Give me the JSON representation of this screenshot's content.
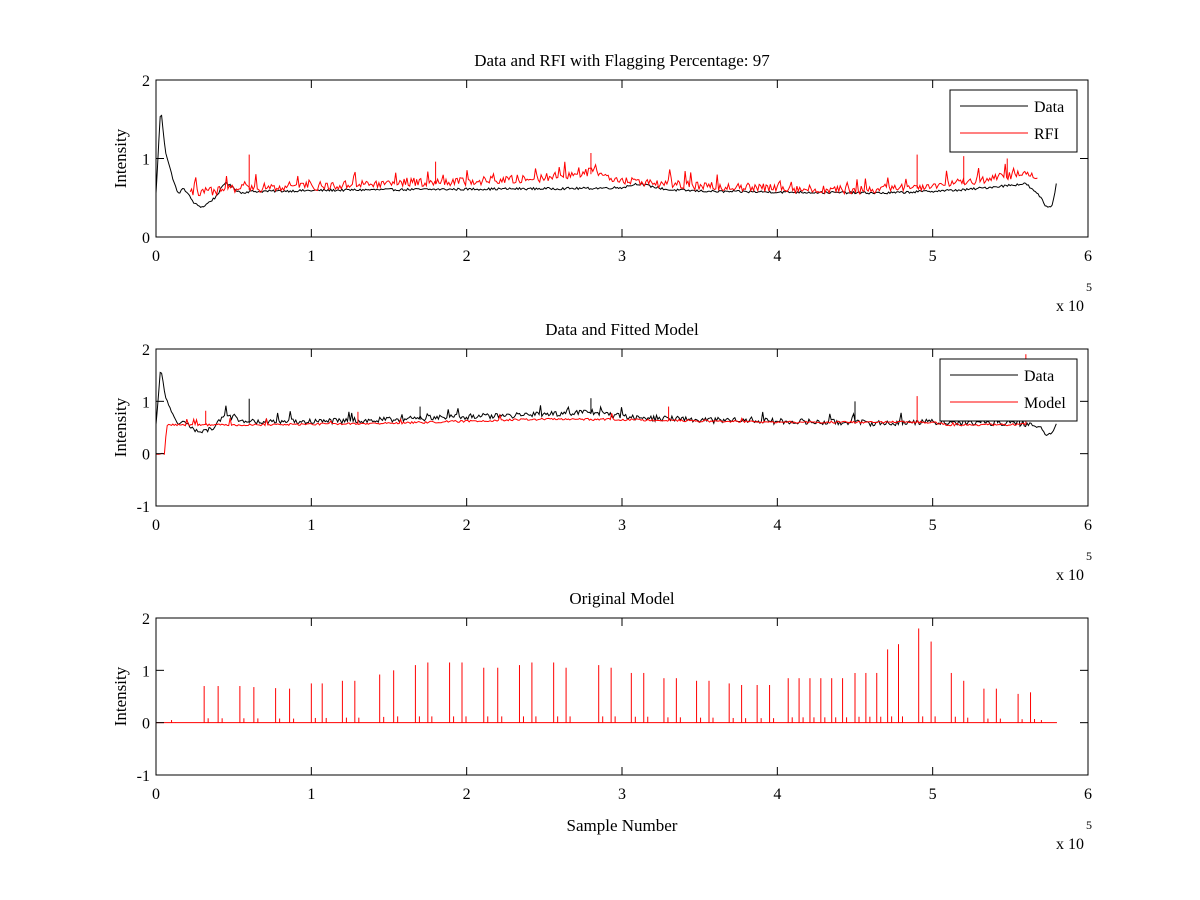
{
  "chart_data": [
    {
      "type": "line",
      "title": "Data and RFI with Flagging Percentage: 97",
      "xlabel": "",
      "ylabel": "Intensity",
      "xlim": [
        0,
        600000
      ],
      "ylim": [
        0,
        2
      ],
      "xticks": [
        "0",
        "1",
        "2",
        "3",
        "4",
        "5",
        "6"
      ],
      "yticks": [
        "0",
        "1",
        "2"
      ],
      "x_multiplier": {
        "base": "x 10",
        "exponent": "5"
      },
      "legend": {
        "placement": "top-right",
        "entries": [
          "Data",
          "RFI"
        ]
      },
      "grid": false,
      "series": [
        {
          "name": "Data",
          "color": "#000000",
          "points": [
            [
              0,
              0.55
            ],
            [
              3000,
              1.65
            ],
            [
              6000,
              1.1
            ],
            [
              10000,
              0.8
            ],
            [
              14000,
              0.55
            ],
            [
              18000,
              0.62
            ],
            [
              25000,
              0.42
            ],
            [
              30000,
              0.38
            ],
            [
              38000,
              0.5
            ],
            [
              45000,
              0.7
            ],
            [
              50000,
              0.62
            ],
            [
              55000,
              0.56
            ],
            [
              60000,
              0.58
            ],
            [
              130000,
              0.6
            ],
            [
              280000,
              0.62
            ],
            [
              300000,
              0.63
            ],
            [
              310000,
              0.68
            ],
            [
              330000,
              0.6
            ],
            [
              360000,
              0.58
            ],
            [
              470000,
              0.56
            ],
            [
              520000,
              0.6
            ],
            [
              560000,
              0.68
            ],
            [
              570000,
              0.5
            ],
            [
              573000,
              0.38
            ],
            [
              577000,
              0.4
            ],
            [
              580000,
              0.72
            ]
          ]
        },
        {
          "name": "RFI",
          "color": "#ff0000",
          "points": [
            [
              22000,
              0.53
            ],
            [
              60000,
              0.6
            ],
            [
              100000,
              0.62
            ],
            [
              150000,
              0.66
            ],
            [
              200000,
              0.68
            ],
            [
              250000,
              0.73
            ],
            [
              280000,
              0.8
            ],
            [
              300000,
              0.7
            ],
            [
              320000,
              0.66
            ],
            [
              350000,
              0.62
            ],
            [
              400000,
              0.6
            ],
            [
              450000,
              0.57
            ],
            [
              500000,
              0.63
            ],
            [
              530000,
              0.7
            ],
            [
              560000,
              0.78
            ],
            [
              568000,
              0.75
            ]
          ],
          "spikes": [
            {
              "x": 60000,
              "y": 1.05
            },
            {
              "x": 180000,
              "y": 0.96
            },
            {
              "x": 280000,
              "y": 1.07
            },
            {
              "x": 490000,
              "y": 1.05
            },
            {
              "x": 520000,
              "y": 1.03
            },
            {
              "x": 548000,
              "y": 1.0
            }
          ]
        }
      ]
    },
    {
      "type": "line",
      "title": "Data and Fitted Model",
      "xlabel": "",
      "ylabel": "Intensity",
      "xlim": [
        0,
        600000
      ],
      "ylim": [
        -1,
        2
      ],
      "xticks": [
        "0",
        "1",
        "2",
        "3",
        "4",
        "5",
        "6"
      ],
      "yticks": [
        "-1",
        "0",
        "1",
        "2"
      ],
      "x_multiplier": {
        "base": "x 10",
        "exponent": "5"
      },
      "legend": {
        "placement": "top-right",
        "entries": [
          "Data",
          "Model"
        ]
      },
      "grid": false,
      "series": [
        {
          "name": "Data",
          "color": "#000000",
          "points": [
            [
              0,
              0.55
            ],
            [
              3000,
              1.65
            ],
            [
              6000,
              1.1
            ],
            [
              10000,
              0.8
            ],
            [
              14000,
              0.55
            ],
            [
              18000,
              0.62
            ],
            [
              25000,
              0.42
            ],
            [
              30000,
              0.38
            ],
            [
              38000,
              0.5
            ],
            [
              45000,
              0.7
            ],
            [
              60000,
              0.58
            ],
            [
              130000,
              0.6
            ],
            [
              200000,
              0.68
            ],
            [
              250000,
              0.72
            ],
            [
              280000,
              0.78
            ],
            [
              300000,
              0.68
            ],
            [
              350000,
              0.62
            ],
            [
              470000,
              0.56
            ],
            [
              500000,
              0.58
            ],
            [
              520000,
              0.56
            ],
            [
              560000,
              0.55
            ],
            [
              570000,
              0.5
            ],
            [
              573000,
              0.35
            ],
            [
              577000,
              0.4
            ],
            [
              580000,
              0.58
            ]
          ],
          "spikes": [
            {
              "x": 60000,
              "y": 1.05
            },
            {
              "x": 170000,
              "y": 0.9
            },
            {
              "x": 280000,
              "y": 1.06
            },
            {
              "x": 450000,
              "y": 1.0
            }
          ]
        },
        {
          "name": "Model",
          "color": "#ff0000",
          "points": [
            [
              0,
              0
            ],
            [
              6000,
              0
            ],
            [
              6500,
              0.55
            ],
            [
              60000,
              0.55
            ],
            [
              150000,
              0.58
            ],
            [
              250000,
              0.66
            ],
            [
              300000,
              0.65
            ],
            [
              400000,
              0.6
            ],
            [
              500000,
              0.6
            ],
            [
              510000,
              0.55
            ],
            [
              540000,
              0.55
            ],
            [
              560000,
              0.56
            ]
          ],
          "spikes": [
            {
              "x": 32000,
              "y": 0.82
            },
            {
              "x": 130000,
              "y": 0.8
            },
            {
              "x": 330000,
              "y": 0.9
            },
            {
              "x": 490000,
              "y": 1.1
            },
            {
              "x": 560000,
              "y": 1.9
            }
          ]
        }
      ]
    },
    {
      "type": "line",
      "title": "Original Model",
      "xlabel": "Sample Number",
      "ylabel": "Intensity",
      "xlim": [
        0,
        600000
      ],
      "ylim": [
        -1,
        2
      ],
      "xticks": [
        "0",
        "1",
        "2",
        "3",
        "4",
        "5",
        "6"
      ],
      "yticks": [
        "-1",
        "0",
        "1",
        "2"
      ],
      "x_multiplier": {
        "base": "x 10",
        "exponent": "5"
      },
      "grid": false,
      "series": [
        {
          "color": "#ff0000",
          "baseline": [
            0,
            580000
          ],
          "spikes": [
            {
              "x": 10000,
              "y": 0.05
            },
            {
              "x": 31000,
              "y": 0.7
            },
            {
              "x": 40000,
              "y": 0.7
            },
            {
              "x": 54000,
              "y": 0.7
            },
            {
              "x": 63000,
              "y": 0.68
            },
            {
              "x": 77000,
              "y": 0.66
            },
            {
              "x": 86000,
              "y": 0.65
            },
            {
              "x": 100000,
              "y": 0.75
            },
            {
              "x": 107000,
              "y": 0.75
            },
            {
              "x": 120000,
              "y": 0.8
            },
            {
              "x": 128000,
              "y": 0.8
            },
            {
              "x": 144000,
              "y": 0.92
            },
            {
              "x": 153000,
              "y": 1.0
            },
            {
              "x": 167000,
              "y": 1.1
            },
            {
              "x": 175000,
              "y": 1.15
            },
            {
              "x": 189000,
              "y": 1.15
            },
            {
              "x": 197000,
              "y": 1.15
            },
            {
              "x": 211000,
              "y": 1.05
            },
            {
              "x": 220000,
              "y": 1.05
            },
            {
              "x": 234000,
              "y": 1.1
            },
            {
              "x": 242000,
              "y": 1.15
            },
            {
              "x": 256000,
              "y": 1.15
            },
            {
              "x": 264000,
              "y": 1.05
            },
            {
              "x": 285000,
              "y": 1.1
            },
            {
              "x": 293000,
              "y": 1.05
            },
            {
              "x": 306000,
              "y": 0.95
            },
            {
              "x": 314000,
              "y": 0.95
            },
            {
              "x": 327000,
              "y": 0.85
            },
            {
              "x": 335000,
              "y": 0.85
            },
            {
              "x": 348000,
              "y": 0.8
            },
            {
              "x": 356000,
              "y": 0.8
            },
            {
              "x": 369000,
              "y": 0.75
            },
            {
              "x": 377000,
              "y": 0.72
            },
            {
              "x": 387000,
              "y": 0.72
            },
            {
              "x": 395000,
              "y": 0.72
            },
            {
              "x": 407000,
              "y": 0.85
            },
            {
              "x": 414000,
              "y": 0.85
            },
            {
              "x": 421000,
              "y": 0.85
            },
            {
              "x": 428000,
              "y": 0.85
            },
            {
              "x": 435000,
              "y": 0.85
            },
            {
              "x": 442000,
              "y": 0.85
            },
            {
              "x": 450000,
              "y": 0.95
            },
            {
              "x": 457000,
              "y": 0.95
            },
            {
              "x": 464000,
              "y": 0.95
            },
            {
              "x": 471000,
              "y": 1.4
            },
            {
              "x": 478000,
              "y": 1.5
            },
            {
              "x": 491000,
              "y": 1.8
            },
            {
              "x": 499000,
              "y": 1.55
            },
            {
              "x": 512000,
              "y": 0.95
            },
            {
              "x": 520000,
              "y": 0.8
            },
            {
              "x": 533000,
              "y": 0.65
            },
            {
              "x": 541000,
              "y": 0.65
            },
            {
              "x": 555000,
              "y": 0.55
            },
            {
              "x": 563000,
              "y": 0.58
            },
            {
              "x": 570000,
              "y": 0.05
            }
          ]
        }
      ]
    }
  ]
}
